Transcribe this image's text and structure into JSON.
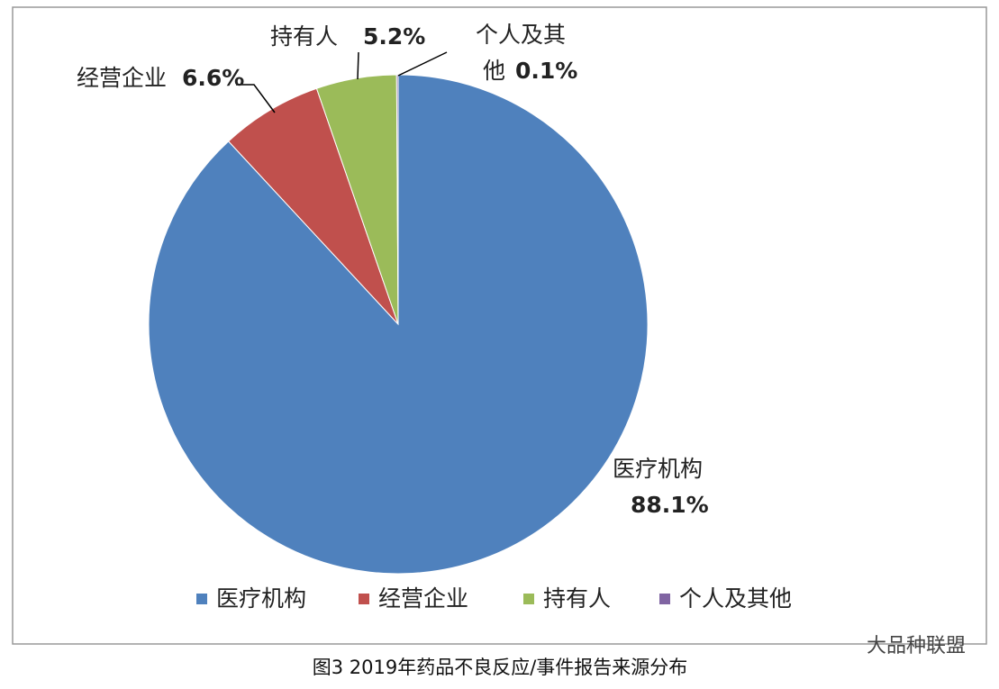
{
  "chart_data": {
    "type": "pie",
    "categories": [
      "医疗机构",
      "经营企业",
      "持有人",
      "个人及其他"
    ],
    "values": [
      88.1,
      6.6,
      5.2,
      0.1
    ],
    "value_labels": [
      "88.1%",
      "6.6%",
      "5.2%",
      "0.1%"
    ],
    "colors": [
      "#4f81bd",
      "#c0504d",
      "#9bbb59",
      "#8064a2"
    ],
    "legend": "bottom",
    "caption": "图3 2019年药品不良反应/事件报告来源分布"
  },
  "watermark": "大品种联盟"
}
